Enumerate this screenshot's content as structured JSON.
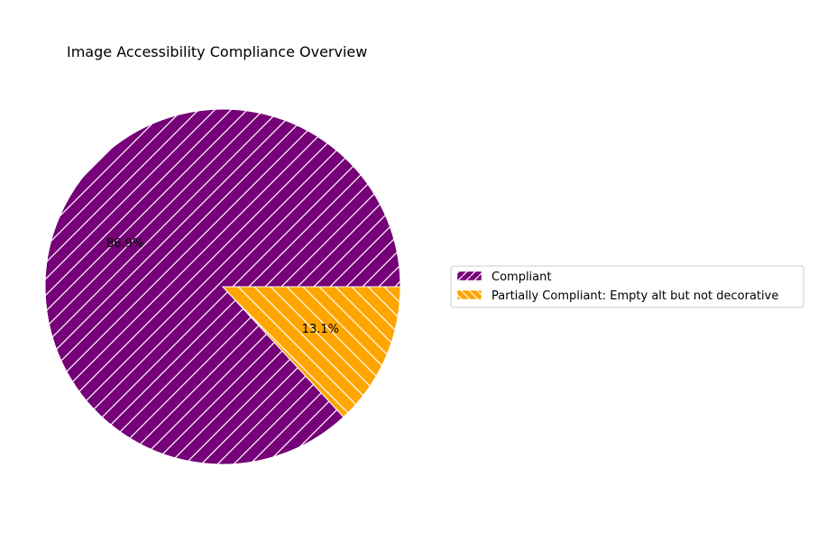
{
  "chart_data": {
    "type": "pie",
    "title": "Image Accessibility Compliance Overview",
    "slices": [
      {
        "label": "Compliant",
        "value": 86.9,
        "pct_label": "86.9%",
        "color": "#750077",
        "hatch": "forward-diagonal"
      },
      {
        "label": "Partially Compliant: Empty alt but not decorative",
        "value": 13.1,
        "pct_label": "13.1%",
        "color": "#ffa500",
        "hatch": "back-diagonal"
      }
    ],
    "start_angle_deg": 0,
    "direction": "counterclockwise",
    "legend_position": "right"
  }
}
